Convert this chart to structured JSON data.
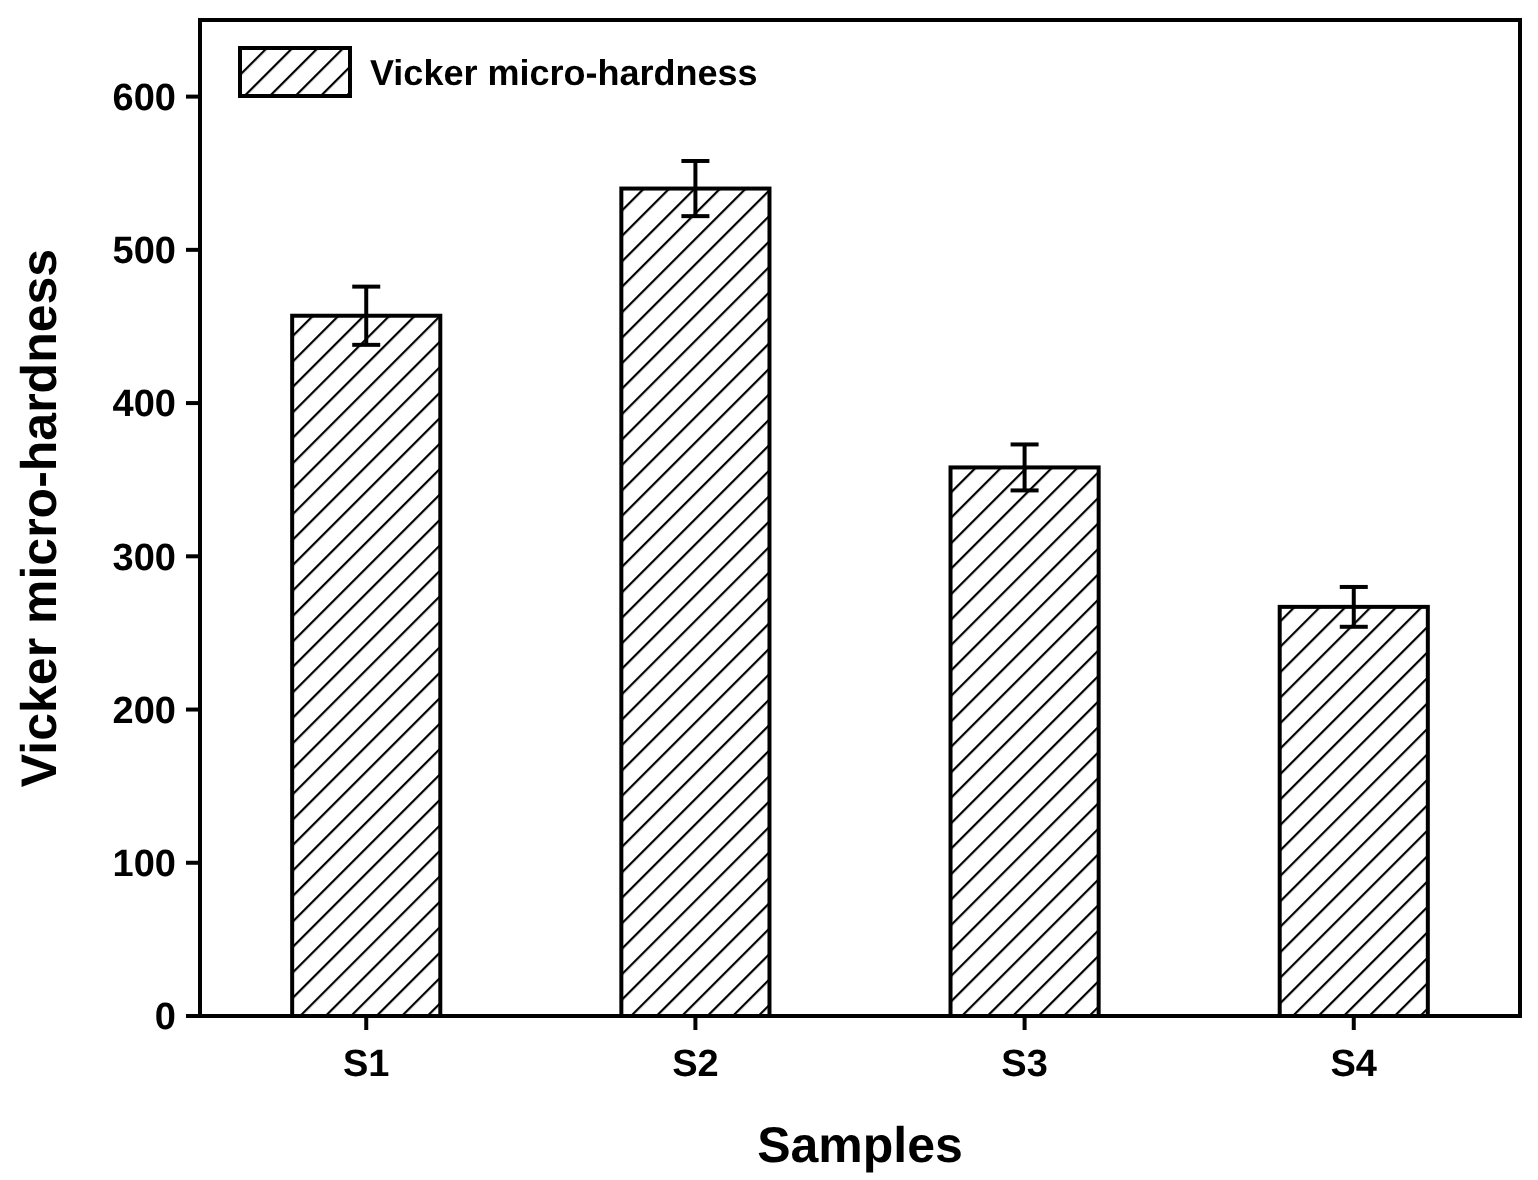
{
  "chart_data": {
    "type": "bar",
    "xlabel": "Samples",
    "ylabel": "Vicker micro-hardness",
    "categories": [
      "S1",
      "S2",
      "S3",
      "S4"
    ],
    "series": [
      {
        "name": "Vicker micro-hardness",
        "color": "#000000",
        "values": [
          457,
          540,
          358,
          267
        ],
        "errors": [
          19,
          18,
          15,
          13
        ]
      }
    ],
    "ylim": [
      0,
      650
    ],
    "yticks": [
      0,
      100,
      200,
      300,
      400,
      500,
      600
    ],
    "grid": false,
    "legend": "top left"
  }
}
